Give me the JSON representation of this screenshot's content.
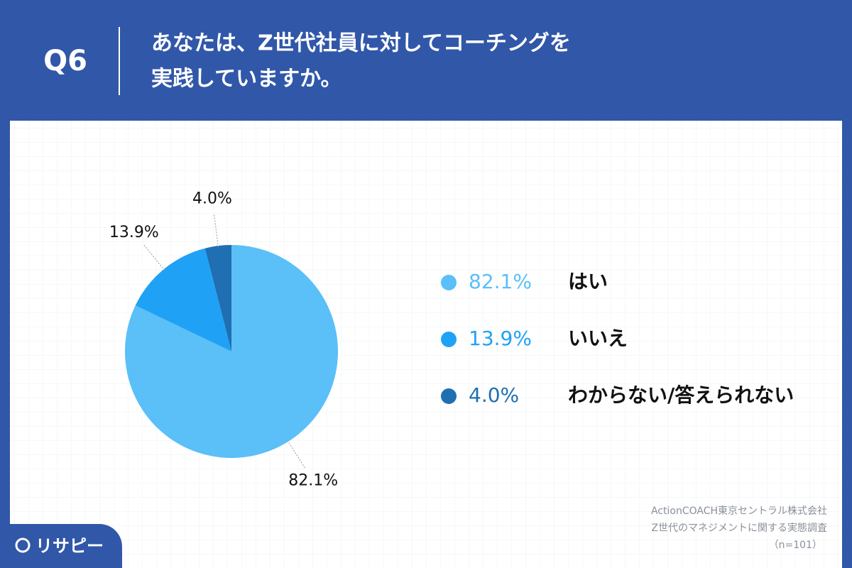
{
  "chart_data": {
    "type": "pie",
    "question": "Q6",
    "title": [
      "あなたは、Z世代社員に対してコーチングを",
      "実践していますか。"
    ],
    "categories": [
      "はい",
      "いいえ",
      "わからない/答えられない"
    ],
    "values": [
      82.1,
      13.9,
      4.0
    ],
    "value_labels": [
      "82.1%",
      "13.9%",
      "4.0%"
    ],
    "colors": [
      "#5bbff8",
      "#1fa2f6",
      "#1f6fb2"
    ],
    "source": [
      "ActionCOACH東京セントラル株式会社",
      "Z世代のマネジメントに関する実態調査",
      "（n=101）"
    ],
    "brand": "リサピー"
  }
}
